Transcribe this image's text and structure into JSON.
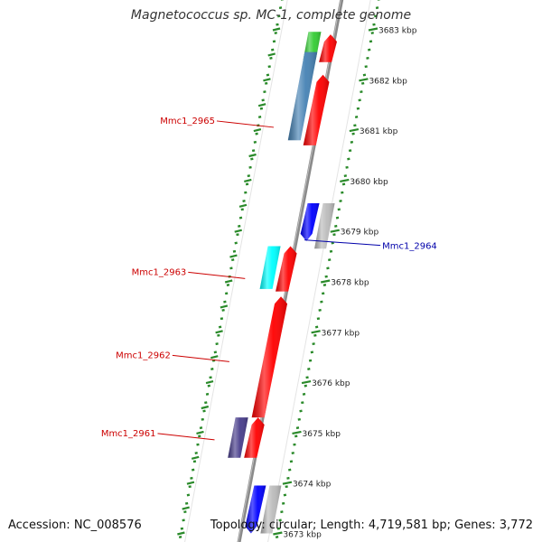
{
  "title": "Magnetococcus sp. MC-1, complete genome",
  "footer": {
    "accession": "Accession: NC_008576",
    "summary": "Topology: circular; Length: 4,719,581 bp; Genes: 3,772"
  },
  "colors": {
    "backbone": "#8a8a8a",
    "tick_major": "#2a8a2a",
    "tick_minor": "#2a8a2a",
    "label_forward": "#cc0000",
    "label_reverse": "#0000aa"
  },
  "scale": {
    "unit": "kbp",
    "ticks": [
      {
        "kbp": 3673,
        "label": "3673 kbp"
      },
      {
        "kbp": 3674,
        "label": "3674 kbp"
      },
      {
        "kbp": 3675,
        "label": "3675 kbp"
      },
      {
        "kbp": 3676,
        "label": "3676 kbp"
      },
      {
        "kbp": 3677,
        "label": "3677 kbp"
      },
      {
        "kbp": 3678,
        "label": "3678 kbp"
      },
      {
        "kbp": 3679,
        "label": "3679 kbp"
      },
      {
        "kbp": 3680,
        "label": "3680 kbp"
      },
      {
        "kbp": 3681,
        "label": "3681 kbp"
      },
      {
        "kbp": 3682,
        "label": "3682 kbp"
      },
      {
        "kbp": 3683,
        "label": "3683 kbp"
      }
    ]
  },
  "features": [
    {
      "track": "cds-forward",
      "start": 3682.35,
      "end": 3682.9,
      "color": "#ff0000",
      "arrow": "forward"
    },
    {
      "track": "gene-forward",
      "start": 3682.4,
      "end": 3682.95,
      "color": "#33cc33"
    },
    {
      "track": "cds-forward",
      "start": 3680.7,
      "end": 3682.1,
      "color": "#ff0000",
      "arrow": "forward"
    },
    {
      "track": "gene-forward",
      "start": 3680.8,
      "end": 3682.55,
      "color": "#4682b4"
    },
    {
      "track": "cds-reverse",
      "start": 3678.8,
      "end": 3679.55,
      "color": "#0000ff",
      "arrow": "reverse"
    },
    {
      "track": "gene-reverse",
      "start": 3678.65,
      "end": 3679.55,
      "color": "#bbbbbb"
    },
    {
      "track": "cds-forward",
      "start": 3677.8,
      "end": 3678.7,
      "color": "#ff0000",
      "arrow": "forward"
    },
    {
      "track": "gene-forward",
      "start": 3677.85,
      "end": 3678.7,
      "color": "#00ffff"
    },
    {
      "track": "cds-forward",
      "start": 3675.3,
      "end": 3677.7,
      "color": "#ff0000",
      "arrow": "forward"
    },
    {
      "track": "cds-forward",
      "start": 3674.5,
      "end": 3675.3,
      "color": "#ff0000",
      "arrow": "forward"
    },
    {
      "track": "gene-forward",
      "start": 3674.5,
      "end": 3675.3,
      "color": "#483d8b"
    },
    {
      "track": "cds-reverse",
      "start": 3673.0,
      "end": 3673.95,
      "color": "#0000ff",
      "arrow": "reverse"
    },
    {
      "track": "gene-reverse",
      "start": 3673.0,
      "end": 3673.95,
      "color": "#bbbbbb"
    }
  ],
  "gene_labels": [
    {
      "text": "Mmc1_2965",
      "side": "left",
      "kbp": 3681.2
    },
    {
      "text": "Mmc1_2964",
      "side": "right",
      "kbp": 3678.75
    },
    {
      "text": "Mmc1_2963",
      "side": "left",
      "kbp": 3678.2
    },
    {
      "text": "Mmc1_2962",
      "side": "left",
      "kbp": 3676.55
    },
    {
      "text": "Mmc1_2961",
      "side": "left",
      "kbp": 3675.0
    }
  ]
}
